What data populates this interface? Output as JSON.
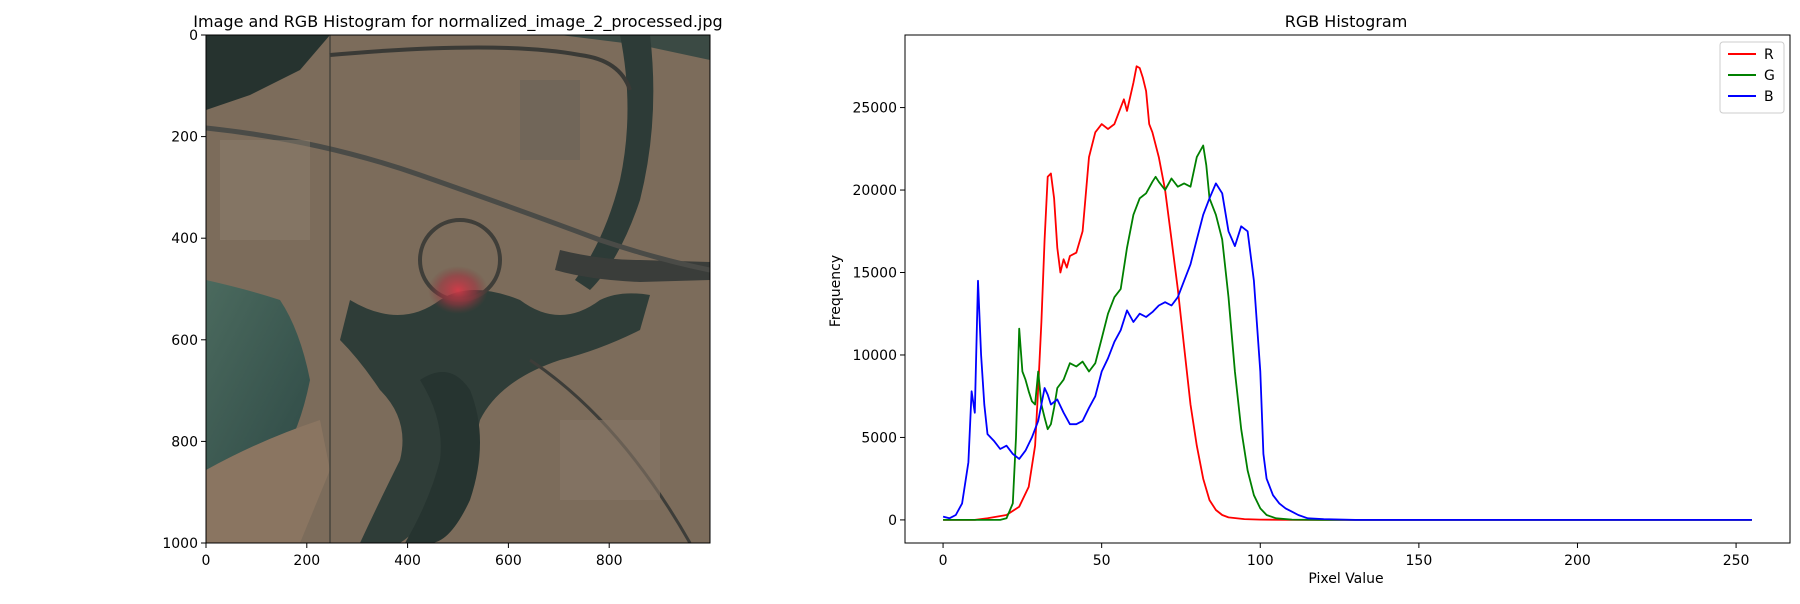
{
  "left_panel": {
    "title": "Image and RGB Histogram for normalized_image_2_processed.jpg",
    "x_ticks": [
      "0",
      "200",
      "400",
      "600",
      "800"
    ],
    "y_ticks": [
      "0",
      "200",
      "400",
      "600",
      "800",
      "1000"
    ],
    "x_range": [
      0,
      1000
    ],
    "y_range": [
      0,
      1000
    ],
    "image_description_colors": {
      "sand": "#7d6e5d",
      "water": "#3f5750",
      "road": "#3a3a36",
      "accent": "#c0343f"
    }
  },
  "chart_data": {
    "type": "line",
    "title": "RGB Histogram",
    "xlabel": "Pixel Value",
    "ylabel": "Frequency",
    "xlim": [
      0,
      255
    ],
    "ylim": [
      0,
      28000
    ],
    "x_ticks": [
      0,
      50,
      100,
      150,
      200,
      250
    ],
    "y_ticks": [
      0,
      5000,
      10000,
      15000,
      20000,
      25000
    ],
    "legend_position": "top-right",
    "series": [
      {
        "name": "R",
        "color": "#ff0000",
        "points": [
          [
            0,
            0
          ],
          [
            10,
            0
          ],
          [
            14,
            100
          ],
          [
            20,
            300
          ],
          [
            24,
            800
          ],
          [
            27,
            2000
          ],
          [
            29,
            4500
          ],
          [
            30,
            8000
          ],
          [
            31,
            12000
          ],
          [
            32,
            17000
          ],
          [
            33,
            20800
          ],
          [
            34,
            21000
          ],
          [
            35,
            19500
          ],
          [
            36,
            16500
          ],
          [
            37,
            15000
          ],
          [
            38,
            15800
          ],
          [
            39,
            15300
          ],
          [
            40,
            16000
          ],
          [
            42,
            16200
          ],
          [
            44,
            17500
          ],
          [
            46,
            22000
          ],
          [
            48,
            23500
          ],
          [
            50,
            24000
          ],
          [
            52,
            23700
          ],
          [
            54,
            24000
          ],
          [
            56,
            25000
          ],
          [
            57,
            25500
          ],
          [
            58,
            24800
          ],
          [
            60,
            26500
          ],
          [
            61,
            27500
          ],
          [
            62,
            27400
          ],
          [
            63,
            26800
          ],
          [
            64,
            26000
          ],
          [
            65,
            24000
          ],
          [
            66,
            23500
          ],
          [
            68,
            22000
          ],
          [
            70,
            20000
          ],
          [
            72,
            17000
          ],
          [
            74,
            14000
          ],
          [
            76,
            10500
          ],
          [
            78,
            7000
          ],
          [
            80,
            4500
          ],
          [
            82,
            2500
          ],
          [
            84,
            1200
          ],
          [
            86,
            600
          ],
          [
            88,
            300
          ],
          [
            90,
            150
          ],
          [
            95,
            50
          ],
          [
            100,
            20
          ],
          [
            110,
            0
          ],
          [
            255,
            0
          ]
        ]
      },
      {
        "name": "G",
        "color": "#008000",
        "points": [
          [
            0,
            0
          ],
          [
            10,
            0
          ],
          [
            15,
            0
          ],
          [
            18,
            0
          ],
          [
            20,
            100
          ],
          [
            22,
            1000
          ],
          [
            23,
            5000
          ],
          [
            24,
            11600
          ],
          [
            25,
            9000
          ],
          [
            26,
            8500
          ],
          [
            27,
            7800
          ],
          [
            28,
            7200
          ],
          [
            29,
            7000
          ],
          [
            30,
            9000
          ],
          [
            31,
            7000
          ],
          [
            32,
            6200
          ],
          [
            33,
            5500
          ],
          [
            34,
            5800
          ],
          [
            35,
            6800
          ],
          [
            36,
            8000
          ],
          [
            38,
            8500
          ],
          [
            40,
            9500
          ],
          [
            42,
            9300
          ],
          [
            44,
            9600
          ],
          [
            46,
            9000
          ],
          [
            48,
            9500
          ],
          [
            50,
            11000
          ],
          [
            52,
            12500
          ],
          [
            54,
            13500
          ],
          [
            56,
            14000
          ],
          [
            58,
            16500
          ],
          [
            60,
            18500
          ],
          [
            62,
            19500
          ],
          [
            64,
            19800
          ],
          [
            66,
            20500
          ],
          [
            67,
            20800
          ],
          [
            68,
            20500
          ],
          [
            70,
            20000
          ],
          [
            72,
            20700
          ],
          [
            74,
            20200
          ],
          [
            76,
            20400
          ],
          [
            78,
            20200
          ],
          [
            80,
            22000
          ],
          [
            82,
            22700
          ],
          [
            83,
            21500
          ],
          [
            84,
            19500
          ],
          [
            86,
            18500
          ],
          [
            88,
            17000
          ],
          [
            90,
            13500
          ],
          [
            92,
            9000
          ],
          [
            94,
            5500
          ],
          [
            96,
            3000
          ],
          [
            98,
            1500
          ],
          [
            100,
            700
          ],
          [
            102,
            300
          ],
          [
            105,
            100
          ],
          [
            110,
            20
          ],
          [
            120,
            0
          ],
          [
            255,
            0
          ]
        ]
      },
      {
        "name": "B",
        "color": "#0000ff",
        "points": [
          [
            0,
            200
          ],
          [
            2,
            100
          ],
          [
            4,
            300
          ],
          [
            6,
            1000
          ],
          [
            8,
            3500
          ],
          [
            9,
            7800
          ],
          [
            10,
            6500
          ],
          [
            11,
            14500
          ],
          [
            12,
            10000
          ],
          [
            13,
            7000
          ],
          [
            14,
            5200
          ],
          [
            16,
            4800
          ],
          [
            18,
            4300
          ],
          [
            20,
            4500
          ],
          [
            22,
            4000
          ],
          [
            24,
            3700
          ],
          [
            26,
            4200
          ],
          [
            28,
            5000
          ],
          [
            30,
            6000
          ],
          [
            31,
            7000
          ],
          [
            32,
            8000
          ],
          [
            33,
            7600
          ],
          [
            34,
            7000
          ],
          [
            36,
            7300
          ],
          [
            38,
            6500
          ],
          [
            40,
            5800
          ],
          [
            42,
            5800
          ],
          [
            44,
            6000
          ],
          [
            46,
            6800
          ],
          [
            48,
            7500
          ],
          [
            50,
            9000
          ],
          [
            52,
            9800
          ],
          [
            54,
            10800
          ],
          [
            56,
            11500
          ],
          [
            58,
            12700
          ],
          [
            60,
            12000
          ],
          [
            62,
            12500
          ],
          [
            64,
            12300
          ],
          [
            66,
            12600
          ],
          [
            68,
            13000
          ],
          [
            70,
            13200
          ],
          [
            72,
            13000
          ],
          [
            74,
            13500
          ],
          [
            76,
            14500
          ],
          [
            78,
            15500
          ],
          [
            80,
            17000
          ],
          [
            82,
            18500
          ],
          [
            84,
            19500
          ],
          [
            86,
            20400
          ],
          [
            88,
            19800
          ],
          [
            90,
            17500
          ],
          [
            92,
            16600
          ],
          [
            94,
            17800
          ],
          [
            96,
            17500
          ],
          [
            98,
            14500
          ],
          [
            100,
            9000
          ],
          [
            101,
            4000
          ],
          [
            102,
            2500
          ],
          [
            104,
            1500
          ],
          [
            106,
            1000
          ],
          [
            108,
            700
          ],
          [
            110,
            500
          ],
          [
            112,
            300
          ],
          [
            115,
            100
          ],
          [
            120,
            50
          ],
          [
            130,
            0
          ],
          [
            255,
            0
          ]
        ]
      }
    ]
  }
}
